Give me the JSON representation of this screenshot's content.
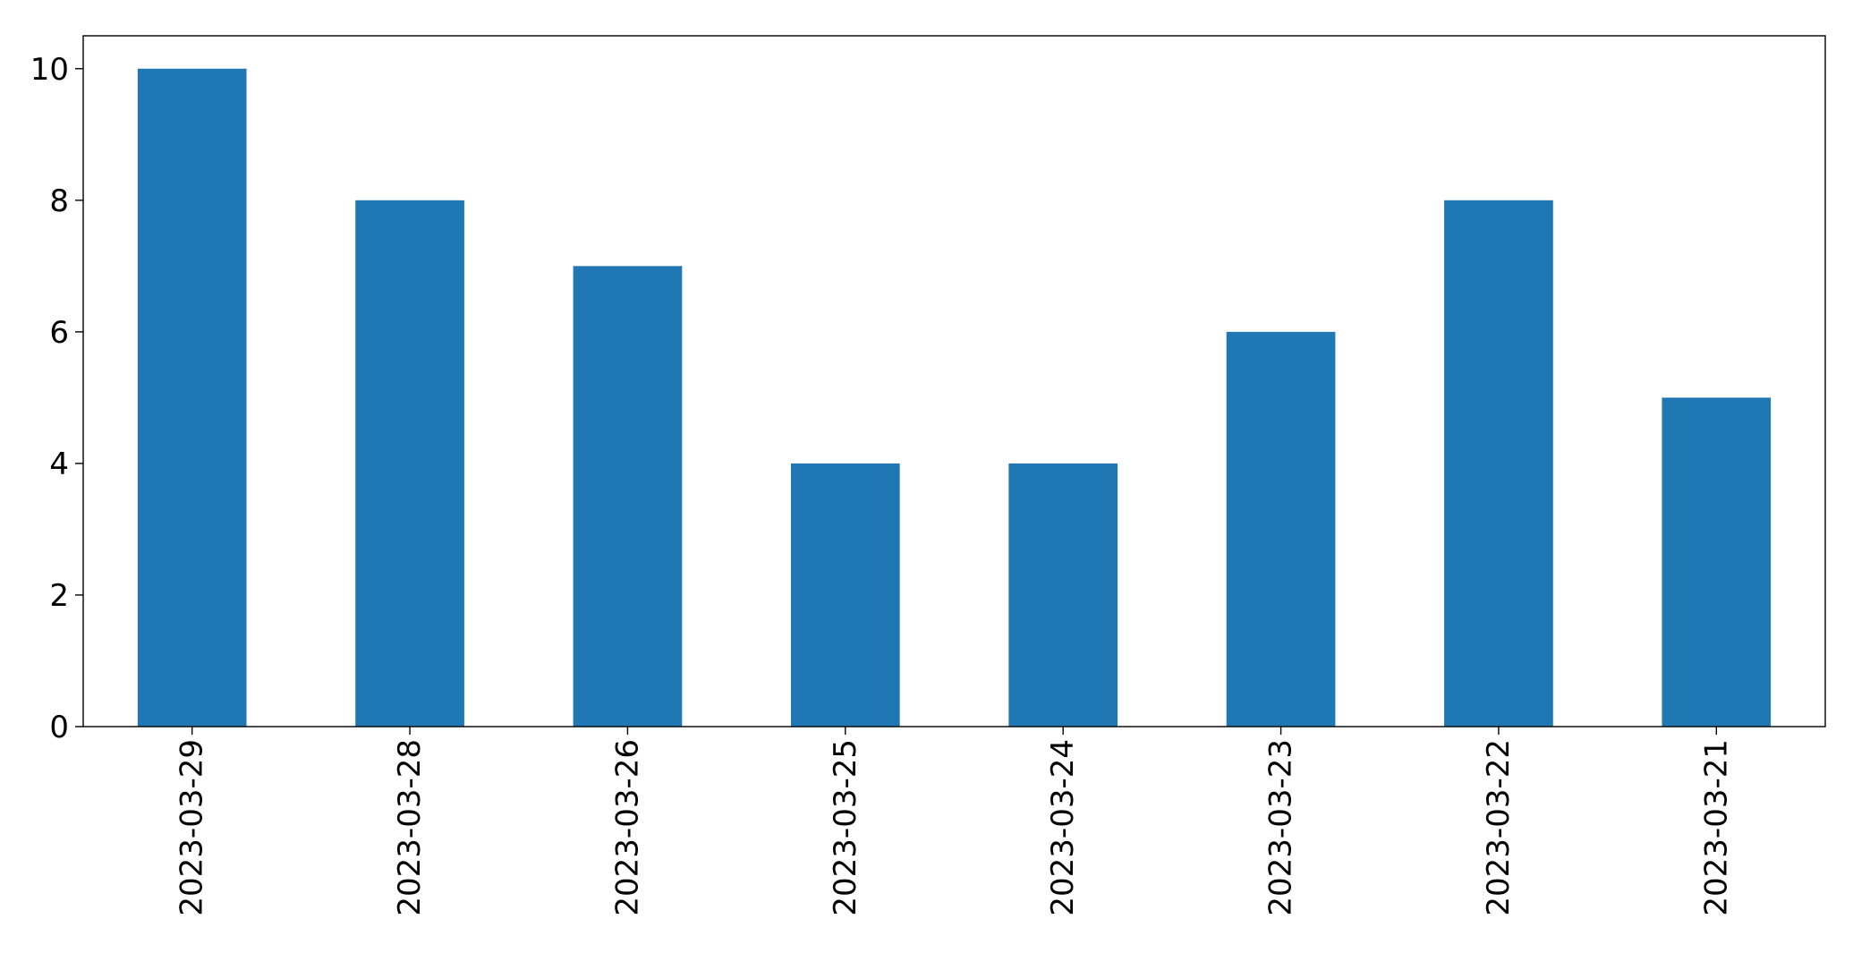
{
  "chart_data": {
    "type": "bar",
    "title": "",
    "xlabel": "",
    "ylabel": "",
    "categories": [
      "2023-03-29",
      "2023-03-28",
      "2023-03-26",
      "2023-03-25",
      "2023-03-24",
      "2023-03-23",
      "2023-03-22",
      "2023-03-21"
    ],
    "values": [
      10,
      8,
      7,
      4,
      4,
      6,
      8,
      5
    ],
    "ylim": [
      0,
      10.5
    ],
    "yticks": [
      "0",
      "2",
      "4",
      "6",
      "8",
      "10"
    ],
    "bar_color": "#1f77b4",
    "grid": false,
    "legend": false
  }
}
